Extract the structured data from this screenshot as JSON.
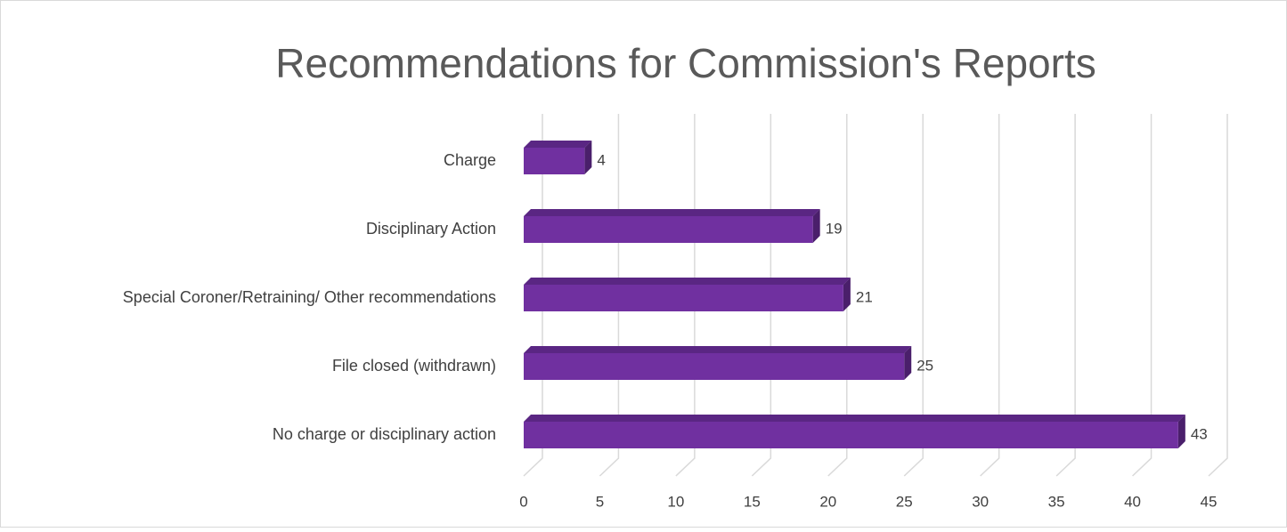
{
  "chart_data": {
    "type": "bar",
    "orientation": "horizontal",
    "title": "Recommendations for Commission's Reports",
    "categories": [
      "Charge",
      "Disciplinary Action",
      "Special Coroner/Retraining/ Other recommendations",
      "File closed (withdrawn)",
      "No charge or disciplinary action"
    ],
    "values": [
      4,
      19,
      21,
      25,
      43
    ],
    "color": "#7030a0",
    "xlim": [
      0,
      45
    ],
    "xticks": [
      0,
      5,
      10,
      15,
      20,
      25,
      30,
      35,
      40,
      45
    ],
    "grid": true
  }
}
